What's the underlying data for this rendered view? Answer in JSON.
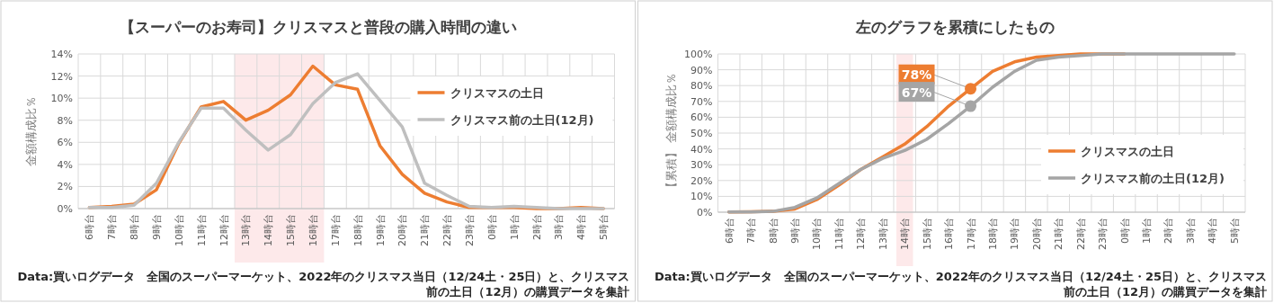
{
  "chart_data": [
    {
      "type": "line",
      "title": "【スーパーのお寿司】クリスマスと普段の購入時間の違い",
      "ylabel": "金額構成比％",
      "categories": [
        "6時台",
        "7時台",
        "8時台",
        "9時台",
        "10時台",
        "11時台",
        "12時台",
        "13時台",
        "14時台",
        "15時台",
        "16時台",
        "17時台",
        "18時台",
        "19時台",
        "20時台",
        "21時台",
        "22時台",
        "23時台",
        "0時台",
        "1時台",
        "2時台",
        "3時台",
        "4時台",
        "5時台"
      ],
      "series": [
        {
          "name": "クリスマスの土日",
          "color": "#ed7d31",
          "values": [
            0.1,
            0.2,
            0.4,
            1.7,
            5.9,
            9.2,
            9.7,
            8.0,
            8.9,
            10.3,
            12.9,
            11.2,
            10.8,
            5.7,
            3.1,
            1.4,
            0.6,
            0.1,
            0.1,
            0.1,
            0.0,
            0.0,
            0.1,
            0.0
          ]
        },
        {
          "name": "クリスマス前の土日(12月)",
          "color": "#bfbfbf",
          "values": [
            0.1,
            0.1,
            0.3,
            2.3,
            6.0,
            9.1,
            9.1,
            7.1,
            5.3,
            6.7,
            9.5,
            11.4,
            12.2,
            9.8,
            7.4,
            2.3,
            1.2,
            0.2,
            0.1,
            0.2,
            0.1,
            0.0,
            0.0,
            0.0
          ]
        }
      ],
      "ylim": [
        0,
        14
      ],
      "yticks": [
        {
          "value": 0,
          "label": "0%"
        },
        {
          "value": 2,
          "label": "2%"
        },
        {
          "value": 4,
          "label": "4%"
        },
        {
          "value": 6,
          "label": "6%"
        },
        {
          "value": 8,
          "label": "8%"
        },
        {
          "value": 10,
          "label": "10%"
        },
        {
          "value": 12,
          "label": "12%"
        },
        {
          "value": 14,
          "label": "14%"
        }
      ],
      "bands": [
        {
          "axis": "x",
          "from": "13時台",
          "to": "16時台",
          "color": "#fde9ea"
        }
      ],
      "grid": true,
      "legend": "top right",
      "marker": "none",
      "annotations": [
        "Data:買いログデータ　全国のスーパーマーケット、2022年のクリスマス当日（12/24土・25日）と、クリスマス前の土日（12月）の購買データを集計"
      ]
    },
    {
      "type": "line",
      "title": "左のグラフを累積にしたもの",
      "ylabel": "【累積】 金額構成比％",
      "categories": [
        "6時台",
        "7時台",
        "8時台",
        "9時台",
        "10時台",
        "11時台",
        "12時台",
        "13時台",
        "14時台",
        "15時台",
        "16時台",
        "17時台",
        "18時台",
        "19時台",
        "20時台",
        "21時台",
        "22時台",
        "23時台",
        "0時台",
        "1時台",
        "2時台",
        "3時台",
        "4時台",
        "5時台"
      ],
      "series": [
        {
          "name": "クリスマスの土日",
          "color": "#ed7d31",
          "values": [
            0.1,
            0.3,
            0.5,
            2,
            8,
            17,
            27,
            35,
            43,
            54,
            67,
            78,
            89,
            95,
            98,
            99,
            100,
            100,
            100,
            null,
            null,
            null,
            null,
            null
          ]
        },
        {
          "name": "クリスマス前の土日(12月)",
          "color": "#a5a5a5",
          "values": [
            0.1,
            0.2,
            0.5,
            3,
            9,
            18,
            27,
            34,
            39,
            46,
            56,
            67,
            79,
            89,
            96,
            98,
            99,
            100,
            100,
            100,
            100,
            100,
            100,
            100
          ]
        }
      ],
      "ylim": [
        0,
        100
      ],
      "yticks": [
        {
          "value": 0,
          "label": "0%"
        },
        {
          "value": 10,
          "label": "10%"
        },
        {
          "value": 20,
          "label": "20%"
        },
        {
          "value": 30,
          "label": "30%"
        },
        {
          "value": 40,
          "label": "40%"
        },
        {
          "value": 50,
          "label": "50%"
        },
        {
          "value": 60,
          "label": "60%"
        },
        {
          "value": 70,
          "label": "70%"
        },
        {
          "value": 80,
          "label": "80%"
        },
        {
          "value": 90,
          "label": "90%"
        },
        {
          "value": 100,
          "label": "100%"
        }
      ],
      "bands": [
        {
          "axis": "x",
          "from": "14時台",
          "to": "14時台",
          "color": "#fde9ea"
        }
      ],
      "grid": true,
      "legend": "bottom right",
      "marker": "none",
      "annotations": [
        {
          "text": "78%",
          "x": "17時台",
          "y": 78
        },
        {
          "text": "67%",
          "x": "17時台",
          "y": 67
        },
        "Data:買いログデータ　全国のスーパーマーケット、2022年のクリスマス当日（12/24土・25日）と、クリスマス前の土日（12月）の購買データを集計"
      ]
    }
  ]
}
